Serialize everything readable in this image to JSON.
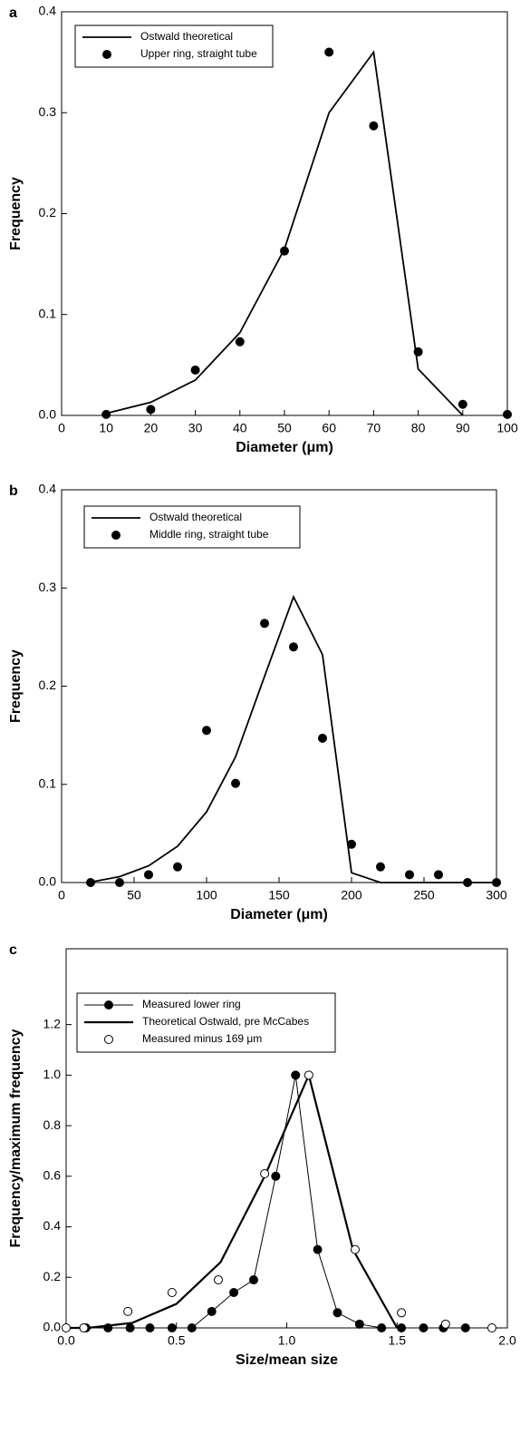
{
  "chart_data": [
    {
      "type": "line",
      "label": "a",
      "xlabel": "Diameter  (μm)",
      "ylabel": "Frequency",
      "xlim": [
        0,
        100
      ],
      "xticks": [
        0,
        10,
        20,
        30,
        40,
        50,
        60,
        70,
        80,
        90,
        100
      ],
      "ylim": [
        0,
        0.4
      ],
      "yticks": [
        {
          "value": 0,
          "label": "0.0"
        },
        0.1,
        0.2,
        0.3,
        0.4
      ],
      "series": [
        {
          "name": "Ostwald theoretical",
          "style": "line",
          "color": "#000000",
          "x": [
            10,
            20,
            30,
            40,
            50,
            60,
            70,
            80,
            90
          ],
          "values": [
            0.002,
            0.013,
            0.035,
            0.082,
            0.165,
            0.3,
            0.36,
            0.046,
            0.0
          ]
        },
        {
          "name": "Upper ring, straight tube",
          "style": "points",
          "marker": "filled",
          "color": "#000000",
          "x": [
            10,
            20,
            30,
            40,
            50,
            60,
            70,
            80,
            90,
            100
          ],
          "values": [
            0.001,
            0.006,
            0.045,
            0.073,
            0.163,
            0.36,
            0.287,
            0.063,
            0.011,
            0.001
          ]
        }
      ]
    },
    {
      "type": "line",
      "label": "b",
      "xlabel": "Diameter  (μm)",
      "ylabel": "Frequency",
      "xlim": [
        0,
        300
      ],
      "xticks": [
        0,
        50,
        100,
        150,
        200,
        250,
        300
      ],
      "ylim": [
        0,
        0.4
      ],
      "yticks": [
        {
          "value": 0,
          "label": "0.0"
        },
        0.1,
        0.2,
        0.3,
        0.4
      ],
      "series": [
        {
          "name": "Ostwald theoretical",
          "style": "line",
          "color": "#000000",
          "x": [
            20,
            40,
            60,
            80,
            100,
            120,
            140,
            160,
            180,
            200,
            220,
            240,
            260,
            280,
            300
          ],
          "values": [
            0.0005,
            0.006,
            0.017,
            0.037,
            0.072,
            0.128,
            0.21,
            0.291,
            0.232,
            0.01,
            0.0,
            0.0,
            0.0,
            0.0,
            0.0
          ]
        },
        {
          "name": "Middle ring, straight tube",
          "style": "points",
          "marker": "filled",
          "color": "#000000",
          "x": [
            20,
            40,
            60,
            80,
            100,
            120,
            140,
            160,
            180,
            200,
            220,
            240,
            260,
            280,
            300
          ],
          "values": [
            0.0,
            0.0,
            0.008,
            0.016,
            0.155,
            0.101,
            0.264,
            0.24,
            0.147,
            0.039,
            0.016,
            0.008,
            0.008,
            0.0,
            0.0
          ]
        }
      ]
    },
    {
      "type": "line",
      "label": "c",
      "xlabel": "Size/mean  size",
      "ylabel": "Frequency/maximum  frequency",
      "xlim": [
        0,
        2
      ],
      "xticks": [
        {
          "value": 0,
          "label": "0.0"
        },
        0.5,
        {
          "value": 1,
          "label": "1.0"
        },
        1.5,
        {
          "value": 2,
          "label": "2.0"
        }
      ],
      "ylim": [
        0,
        1.5
      ],
      "yticks": [
        {
          "value": 0,
          "label": "0.0"
        },
        0.2,
        0.4,
        0.6,
        0.8,
        {
          "value": 1,
          "label": "1.0"
        },
        1.2
      ],
      "series": [
        {
          "name": "Measured lower ring",
          "style": "line-points",
          "marker": "filled",
          "color": "#000000",
          "x": [
            0.09,
            0.19,
            0.29,
            0.38,
            0.48,
            0.57,
            0.66,
            0.76,
            0.85,
            0.95,
            1.04,
            1.14,
            1.23,
            1.33,
            1.43,
            1.52,
            1.62,
            1.71,
            1.81
          ],
          "values": [
            0,
            0,
            0,
            0,
            0,
            0,
            0.065,
            0.14,
            0.19,
            0.6,
            1.0,
            0.31,
            0.06,
            0.015,
            0,
            0,
            0,
            0,
            0
          ]
        },
        {
          "name": "Theoretical Ostwald, pre McCabes",
          "style": "line",
          "thick": true,
          "color": "#000000",
          "x": [
            0.0,
            0.1,
            0.3,
            0.5,
            0.7,
            0.9,
            1.1,
            1.3,
            1.5
          ],
          "values": [
            0,
            0,
            0.02,
            0.095,
            0.26,
            0.6,
            1.0,
            0.31,
            0
          ]
        },
        {
          "name": "Measured minus 169 μm",
          "style": "points",
          "marker": "open",
          "color": "#000000",
          "x": [
            0.0,
            0.08,
            0.28,
            0.48,
            0.69,
            0.9,
            1.1,
            1.31,
            1.52,
            1.72,
            1.93
          ],
          "values": [
            0,
            0,
            0.065,
            0.14,
            0.19,
            0.61,
            1.0,
            0.31,
            0.06,
            0.015,
            0
          ]
        }
      ]
    }
  ]
}
